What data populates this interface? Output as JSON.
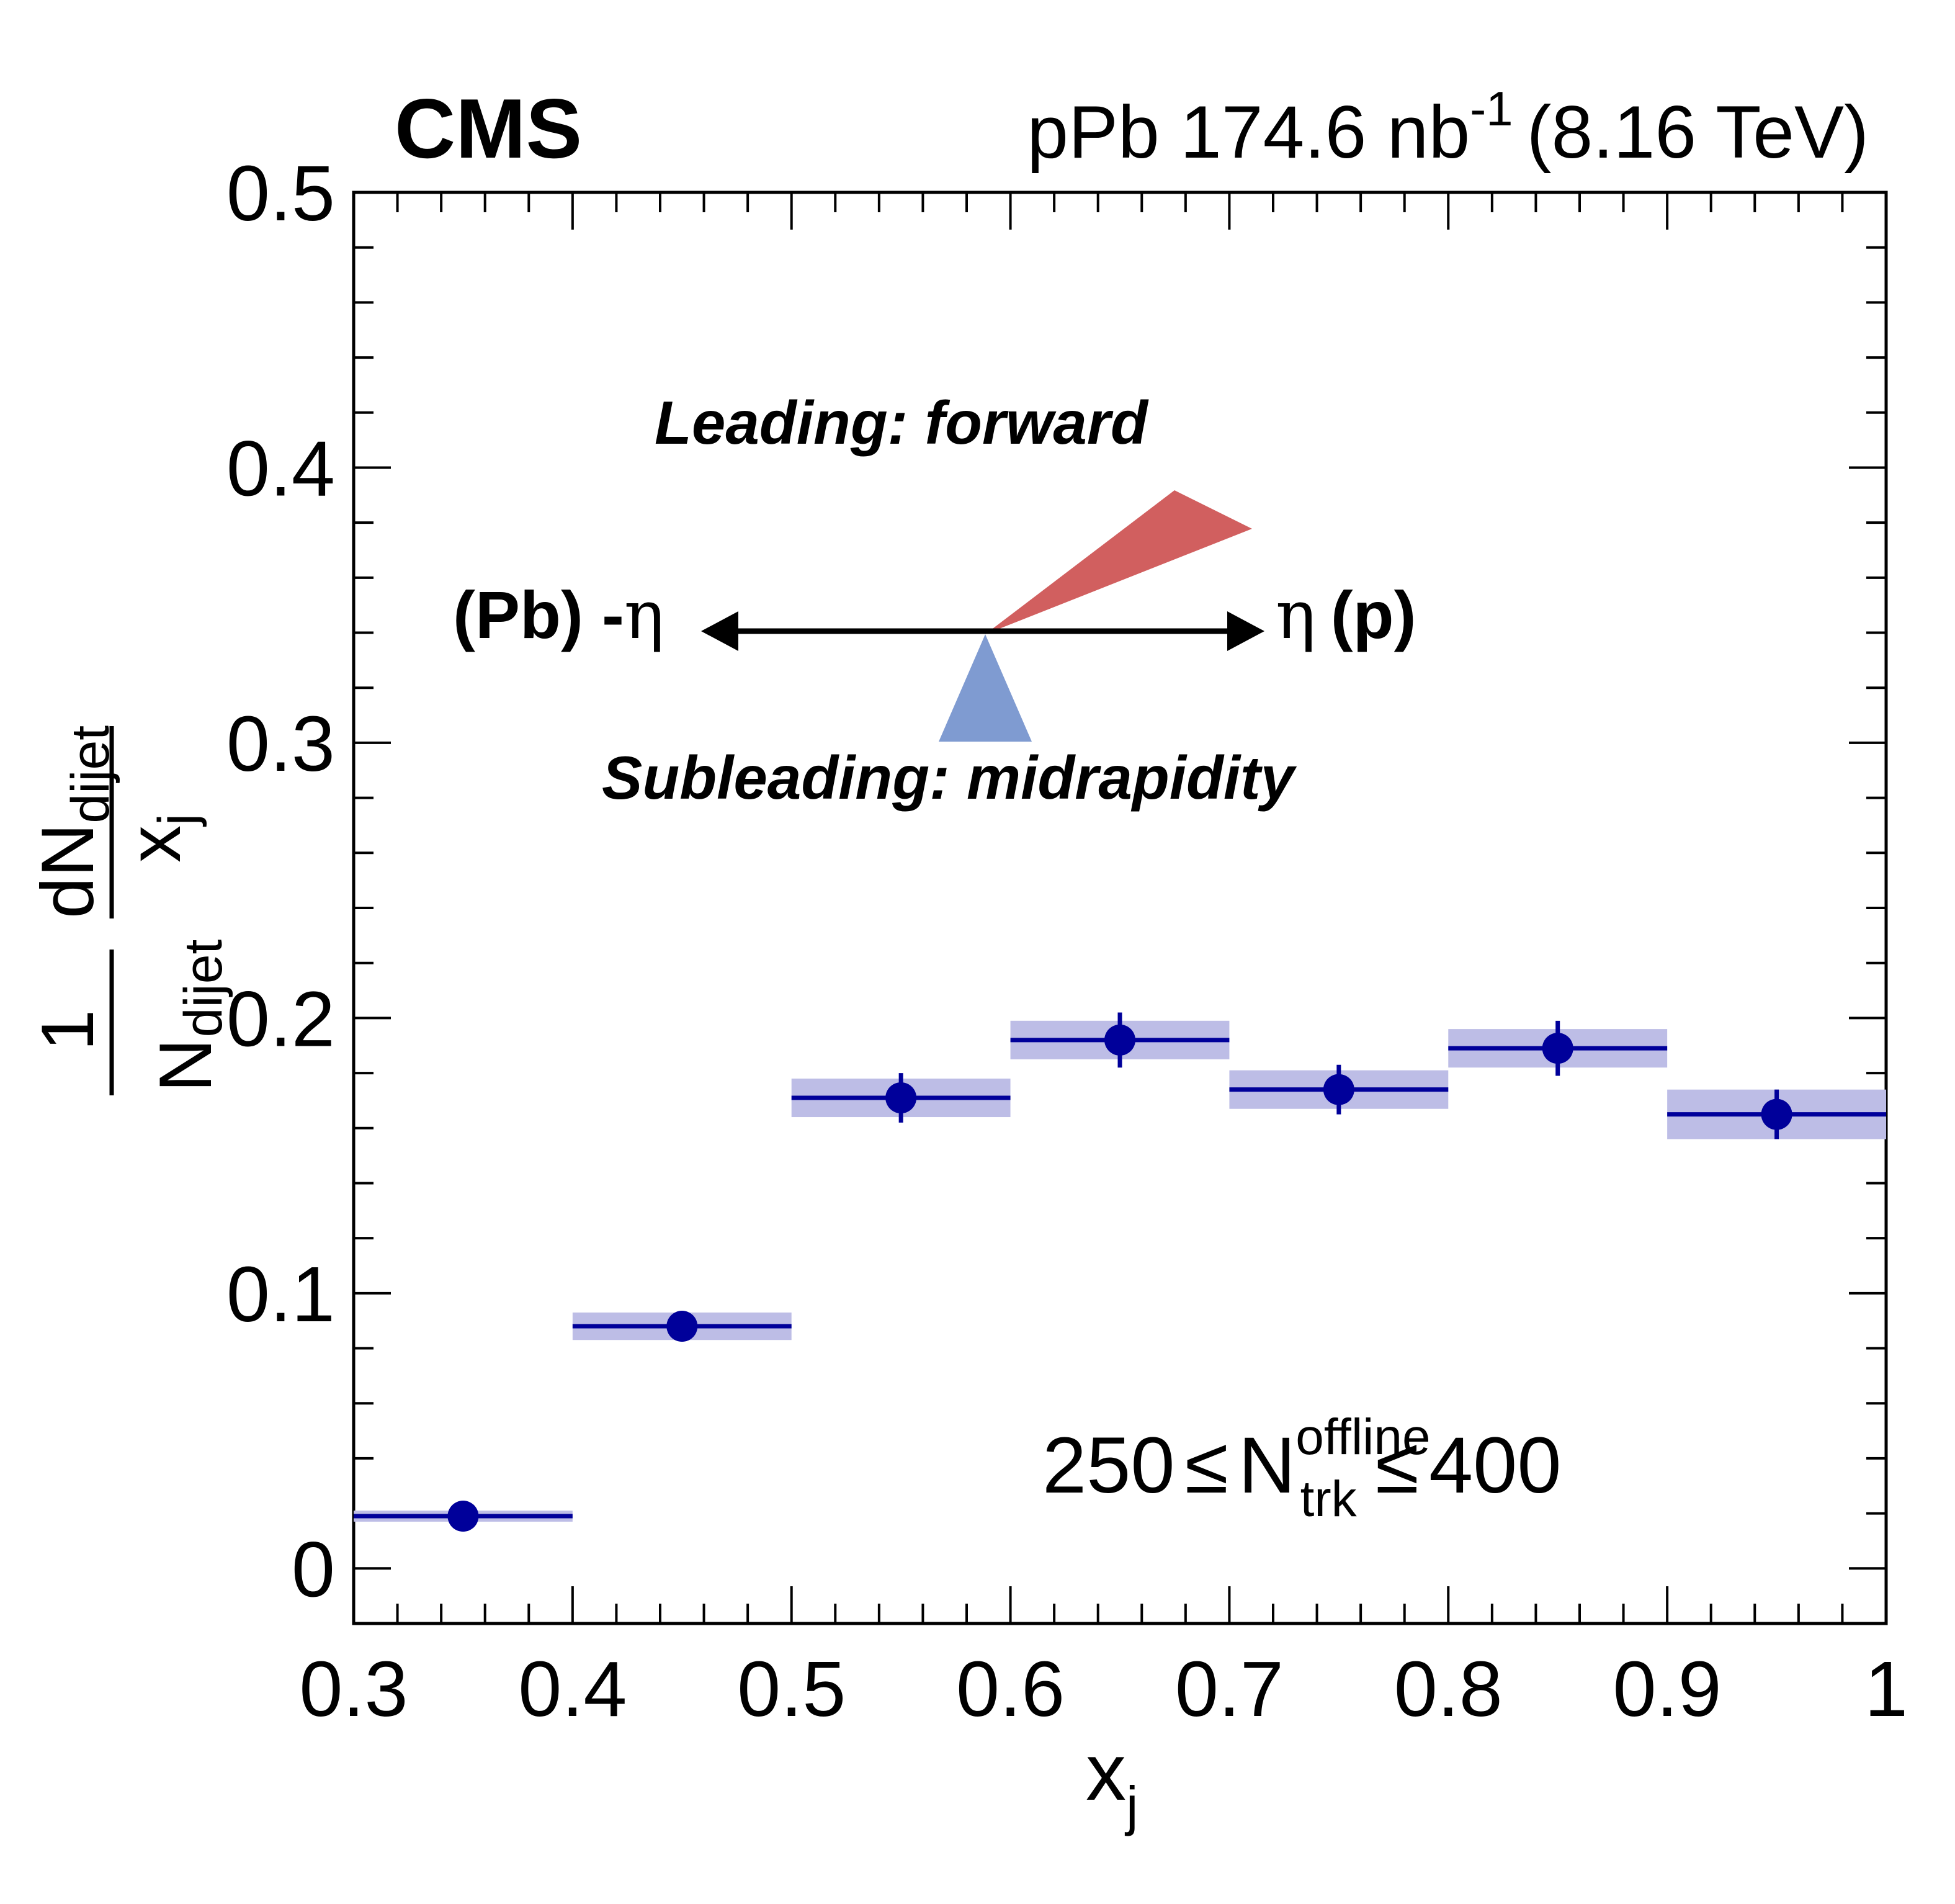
{
  "header": {
    "experiment": "CMS",
    "lumi_prefix": "pPb 174.6 nb",
    "lumi_exponent": "-1",
    "energy": "(8.16 TeV)"
  },
  "annotations": {
    "leading_label": "Leading: forward",
    "subleading_label": "Subleading: midrapidity",
    "arrow_left_label": "(Pb) -",
    "arrow_right_paren": "(p)",
    "eta_symbol": "η",
    "selection_low": "250",
    "selection_high": "400",
    "selection_symbol": "N",
    "selection_sub": "trk",
    "selection_sup": "offline",
    "leq": "≤"
  },
  "colors": {
    "marker": "#00009a",
    "syst_band": "#bdbde6",
    "leading_wedge": "#d15f5f",
    "subleading_wedge": "#7f9bd1",
    "axis": "#000000"
  },
  "chart_data": {
    "type": "scatter",
    "xlabel": "x",
    "xlabel_sub": "j",
    "ylabel": {
      "fraction1_num": "1",
      "fraction1_den": "N",
      "fraction1_den_sub": "dijet",
      "fraction2_num": "dN",
      "fraction2_num_sub": "dijet",
      "fraction2_den": "x",
      "fraction2_den_sub": "j"
    },
    "xlim": [
      0.3,
      1.0
    ],
    "ylim": [
      -0.02,
      0.5
    ],
    "x_ticks": [
      "0.3",
      "0.4",
      "0.5",
      "0.6",
      "0.7",
      "0.8",
      "0.9",
      "1"
    ],
    "y_ticks": [
      "0",
      "0.1",
      "0.2",
      "0.3",
      "0.4",
      "0.5"
    ],
    "series": [
      {
        "bins": [
          [
            0.3,
            0.4
          ],
          [
            0.4,
            0.5
          ],
          [
            0.5,
            0.6
          ],
          [
            0.6,
            0.7
          ],
          [
            0.7,
            0.8
          ],
          [
            0.8,
            0.9
          ],
          [
            0.9,
            1.0
          ]
        ],
        "x": [
          0.35,
          0.45,
          0.55,
          0.65,
          0.75,
          0.85,
          0.95
        ],
        "y": [
          0.019,
          0.088,
          0.171,
          0.192,
          0.174,
          0.189,
          0.165
        ],
        "stat_err": [
          0.002,
          0.004,
          0.009,
          0.01,
          0.009,
          0.01,
          0.009
        ],
        "syst_err": [
          0.002,
          0.005,
          0.007,
          0.007,
          0.007,
          0.007,
          0.009
        ]
      }
    ]
  }
}
